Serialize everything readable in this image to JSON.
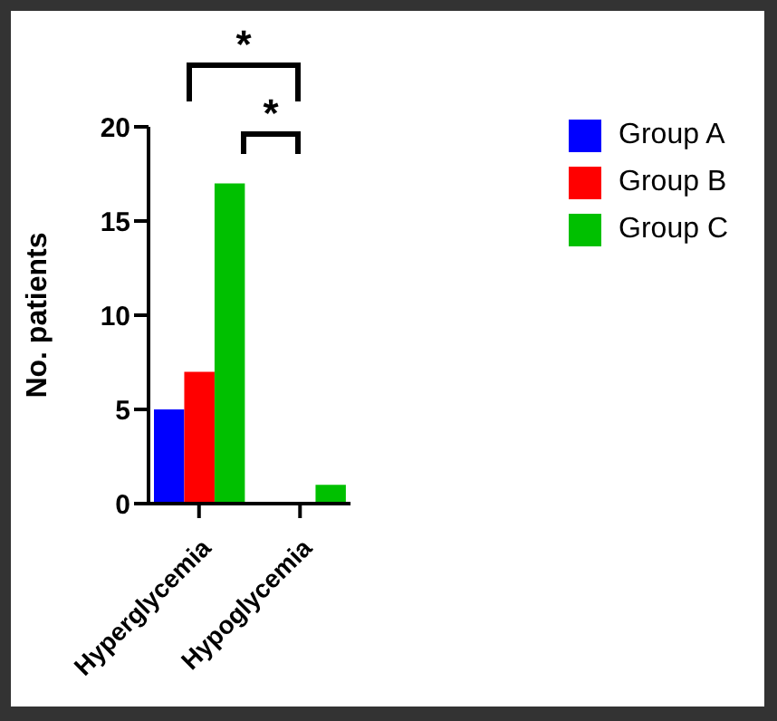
{
  "chart_data": {
    "type": "bar",
    "ylabel": "No. patients",
    "categories": [
      "Hyperglycemia",
      "Hypoglycemia"
    ],
    "series": [
      {
        "name": "Group A",
        "color": "#0000ff",
        "values": [
          5,
          0
        ]
      },
      {
        "name": "Group B",
        "color": "#ff0000",
        "values": [
          7,
          0
        ]
      },
      {
        "name": "Group C",
        "color": "#00c000",
        "values": [
          17,
          1
        ]
      }
    ],
    "ylim": [
      0,
      20
    ],
    "yticks": [
      0,
      5,
      10,
      15,
      20
    ],
    "grid": false,
    "legend": "top right",
    "annotations": [
      "*",
      "*"
    ]
  }
}
